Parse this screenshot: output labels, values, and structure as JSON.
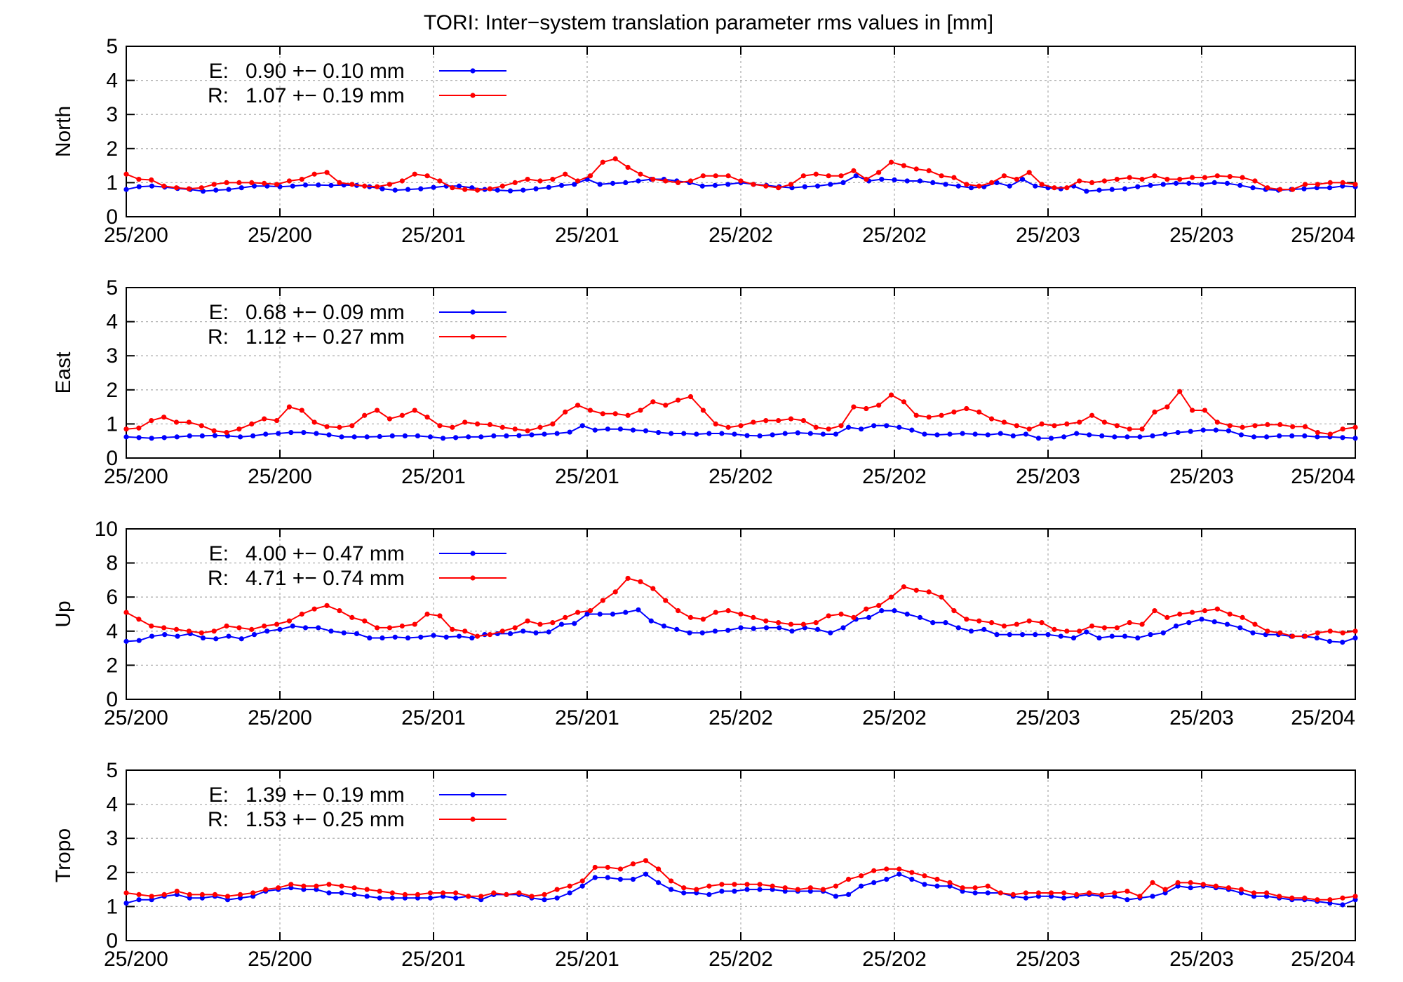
{
  "title": "TORI: Inter−system translation parameter rms values in [mm]",
  "colors": {
    "E": "#0000ff",
    "R": "#ff0000",
    "grid": "#b0b0b0"
  },
  "chart_data": [
    {
      "type": "line",
      "ylabel": "North",
      "ylim": [
        0,
        5
      ],
      "yticks": [
        0,
        1,
        2,
        3,
        4,
        5
      ],
      "xticks": [
        "25/200",
        "25/200",
        "25/201",
        "25/201",
        "25/202",
        "25/202",
        "25/203",
        "25/203",
        "25/204"
      ],
      "grid": true,
      "legend_position": "top-left",
      "series": [
        {
          "name": "E:",
          "stats": "0.90 +− 0.10 mm",
          "values": [
            0.8,
            0.88,
            0.9,
            0.87,
            0.83,
            0.8,
            0.75,
            0.78,
            0.8,
            0.85,
            0.9,
            0.9,
            0.88,
            0.9,
            0.93,
            0.93,
            0.92,
            0.93,
            0.92,
            0.88,
            0.82,
            0.78,
            0.8,
            0.82,
            0.86,
            0.9,
            0.9,
            0.85,
            0.8,
            0.78,
            0.76,
            0.78,
            0.82,
            0.86,
            0.92,
            0.95,
            1.1,
            0.95,
            0.98,
            1.0,
            1.05,
            1.1,
            1.1,
            1.05,
            1.0,
            0.9,
            0.92,
            0.95,
            1.0,
            0.95,
            0.92,
            0.88,
            0.85,
            0.88,
            0.9,
            0.95,
            1.0,
            1.2,
            1.05,
            1.1,
            1.08,
            1.05,
            1.05,
            1.0,
            0.95,
            0.9,
            0.85,
            0.88,
            1.0,
            0.9,
            1.1,
            0.9,
            0.85,
            0.82,
            0.9,
            0.75,
            0.78,
            0.8,
            0.82,
            0.88,
            0.92,
            0.95,
            0.98,
            0.98,
            0.95,
            1.0,
            0.98,
            0.92,
            0.85,
            0.8,
            0.78,
            0.8,
            0.82,
            0.85,
            0.85,
            0.9,
            0.88
          ]
        },
        {
          "name": "R:",
          "stats": "1.07 +− 0.19 mm",
          "values": [
            1.25,
            1.1,
            1.08,
            0.9,
            0.85,
            0.82,
            0.85,
            0.95,
            1.0,
            1.0,
            1.0,
            0.98,
            0.95,
            1.05,
            1.1,
            1.25,
            1.3,
            1.0,
            0.95,
            0.9,
            0.88,
            0.95,
            1.05,
            1.25,
            1.2,
            1.05,
            0.85,
            0.8,
            0.78,
            0.82,
            0.9,
            1.0,
            1.1,
            1.05,
            1.1,
            1.25,
            1.05,
            1.2,
            1.6,
            1.7,
            1.45,
            1.25,
            1.1,
            1.05,
            1.0,
            1.05,
            1.2,
            1.2,
            1.2,
            1.05,
            0.95,
            0.9,
            0.85,
            0.95,
            1.2,
            1.25,
            1.2,
            1.2,
            1.35,
            1.1,
            1.3,
            1.6,
            1.5,
            1.4,
            1.35,
            1.2,
            1.15,
            0.95,
            0.9,
            1.0,
            1.2,
            1.1,
            1.3,
            0.95,
            0.85,
            0.85,
            1.05,
            1.0,
            1.05,
            1.1,
            1.15,
            1.1,
            1.2,
            1.1,
            1.1,
            1.15,
            1.15,
            1.2,
            1.18,
            1.15,
            1.05,
            0.85,
            0.8,
            0.8,
            0.95,
            0.95,
            1.0,
            1.0,
            0.95
          ]
        }
      ]
    },
    {
      "type": "line",
      "ylabel": "East",
      "ylim": [
        0,
        5
      ],
      "yticks": [
        0,
        1,
        2,
        3,
        4,
        5
      ],
      "xticks": [
        "25/200",
        "25/200",
        "25/201",
        "25/201",
        "25/202",
        "25/202",
        "25/203",
        "25/203",
        "25/204"
      ],
      "grid": true,
      "legend_position": "top-left",
      "series": [
        {
          "name": "E:",
          "stats": "0.68 +− 0.09 mm",
          "values": [
            0.62,
            0.6,
            0.58,
            0.6,
            0.62,
            0.65,
            0.65,
            0.66,
            0.65,
            0.62,
            0.65,
            0.7,
            0.72,
            0.75,
            0.75,
            0.72,
            0.68,
            0.62,
            0.62,
            0.62,
            0.63,
            0.65,
            0.65,
            0.65,
            0.62,
            0.58,
            0.6,
            0.62,
            0.62,
            0.65,
            0.65,
            0.66,
            0.68,
            0.7,
            0.72,
            0.76,
            0.95,
            0.82,
            0.85,
            0.85,
            0.82,
            0.8,
            0.75,
            0.72,
            0.72,
            0.7,
            0.72,
            0.72,
            0.7,
            0.66,
            0.65,
            0.68,
            0.72,
            0.74,
            0.72,
            0.7,
            0.7,
            0.9,
            0.85,
            0.95,
            0.95,
            0.9,
            0.82,
            0.7,
            0.68,
            0.7,
            0.72,
            0.7,
            0.68,
            0.72,
            0.65,
            0.7,
            0.58,
            0.58,
            0.62,
            0.72,
            0.68,
            0.65,
            0.62,
            0.62,
            0.62,
            0.65,
            0.7,
            0.75,
            0.78,
            0.82,
            0.82,
            0.8,
            0.68,
            0.62,
            0.62,
            0.65,
            0.65,
            0.65,
            0.62,
            0.62,
            0.6,
            0.58
          ]
        },
        {
          "name": "R:",
          "stats": "1.12 +− 0.27 mm",
          "values": [
            0.85,
            0.88,
            1.1,
            1.2,
            1.05,
            1.05,
            0.95,
            0.8,
            0.75,
            0.85,
            1.0,
            1.15,
            1.1,
            1.5,
            1.4,
            1.05,
            0.92,
            0.9,
            0.95,
            1.25,
            1.4,
            1.15,
            1.25,
            1.4,
            1.2,
            0.95,
            0.9,
            1.05,
            1.0,
            0.98,
            0.9,
            0.85,
            0.8,
            0.9,
            1.0,
            1.35,
            1.55,
            1.4,
            1.3,
            1.3,
            1.25,
            1.4,
            1.65,
            1.55,
            1.7,
            1.8,
            1.4,
            1.0,
            0.9,
            0.95,
            1.05,
            1.1,
            1.1,
            1.15,
            1.1,
            0.9,
            0.85,
            0.95,
            1.5,
            1.45,
            1.55,
            1.85,
            1.65,
            1.25,
            1.2,
            1.25,
            1.35,
            1.45,
            1.35,
            1.15,
            1.05,
            0.95,
            0.85,
            1.0,
            0.95,
            1.0,
            1.05,
            1.25,
            1.05,
            0.95,
            0.85,
            0.85,
            1.35,
            1.5,
            1.95,
            1.4,
            1.4,
            1.05,
            0.95,
            0.9,
            0.95,
            0.98,
            0.98,
            0.92,
            0.92,
            0.75,
            0.7,
            0.85,
            0.9
          ]
        }
      ]
    },
    {
      "type": "line",
      "ylabel": "Up",
      "ylim": [
        0,
        10
      ],
      "yticks": [
        0,
        2,
        4,
        6,
        8,
        10
      ],
      "xticks": [
        "25/200",
        "25/200",
        "25/201",
        "25/201",
        "25/202",
        "25/202",
        "25/203",
        "25/203",
        "25/204"
      ],
      "grid": true,
      "legend_position": "top-left",
      "series": [
        {
          "name": "E:",
          "stats": "4.00 +− 0.47 mm",
          "values": [
            3.4,
            3.45,
            3.7,
            3.8,
            3.7,
            3.85,
            3.6,
            3.55,
            3.7,
            3.55,
            3.8,
            4.0,
            4.1,
            4.3,
            4.2,
            4.2,
            4.0,
            3.9,
            3.85,
            3.6,
            3.6,
            3.65,
            3.6,
            3.65,
            3.75,
            3.65,
            3.7,
            3.6,
            3.8,
            3.85,
            3.85,
            4.0,
            3.9,
            3.95,
            4.4,
            4.45,
            5.0,
            5.0,
            5.0,
            5.1,
            5.25,
            4.6,
            4.3,
            4.1,
            3.9,
            3.9,
            4.0,
            4.05,
            4.2,
            4.15,
            4.2,
            4.2,
            4.0,
            4.2,
            4.1,
            3.9,
            4.2,
            4.7,
            4.8,
            5.2,
            5.2,
            5.0,
            4.8,
            4.5,
            4.5,
            4.2,
            4.0,
            4.1,
            3.8,
            3.8,
            3.8,
            3.8,
            3.8,
            3.7,
            3.6,
            3.95,
            3.6,
            3.7,
            3.7,
            3.6,
            3.8,
            3.9,
            4.3,
            4.5,
            4.7,
            4.55,
            4.4,
            4.2,
            3.9,
            3.8,
            3.8,
            3.7,
            3.7,
            3.6,
            3.4,
            3.35,
            3.6
          ]
        },
        {
          "name": "R:",
          "stats": "4.71 +− 0.74 mm",
          "values": [
            5.1,
            4.7,
            4.3,
            4.2,
            4.1,
            4.0,
            3.9,
            4.0,
            4.3,
            4.2,
            4.1,
            4.3,
            4.4,
            4.6,
            5.0,
            5.3,
            5.5,
            5.2,
            4.8,
            4.6,
            4.2,
            4.2,
            4.3,
            4.4,
            5.0,
            4.9,
            4.1,
            4.0,
            3.7,
            3.8,
            4.0,
            4.2,
            4.6,
            4.4,
            4.5,
            4.8,
            5.1,
            5.2,
            5.8,
            6.3,
            7.1,
            6.9,
            6.5,
            5.8,
            5.2,
            4.8,
            4.7,
            5.1,
            5.2,
            5.0,
            4.8,
            4.6,
            4.5,
            4.4,
            4.4,
            4.5,
            4.9,
            5.0,
            4.8,
            5.3,
            5.5,
            6.0,
            6.6,
            6.4,
            6.3,
            6.0,
            5.2,
            4.7,
            4.6,
            4.5,
            4.3,
            4.4,
            4.6,
            4.5,
            4.1,
            4.0,
            4.0,
            4.3,
            4.2,
            4.2,
            4.5,
            4.4,
            5.2,
            4.8,
            5.0,
            5.1,
            5.2,
            5.3,
            5.0,
            4.8,
            4.4,
            4.0,
            3.9,
            3.7,
            3.7,
            3.9,
            4.0,
            3.9,
            4.0
          ]
        }
      ]
    },
    {
      "type": "line",
      "ylabel": "Tropo",
      "ylim": [
        0,
        5
      ],
      "yticks": [
        0,
        1,
        2,
        3,
        4,
        5
      ],
      "xticks": [
        "25/200",
        "25/200",
        "25/201",
        "25/201",
        "25/202",
        "25/202",
        "25/203",
        "25/203",
        "25/204"
      ],
      "grid": true,
      "legend_position": "top-left",
      "series": [
        {
          "name": "E:",
          "stats": "1.39 +− 0.19 mm",
          "values": [
            1.1,
            1.2,
            1.2,
            1.3,
            1.35,
            1.25,
            1.25,
            1.3,
            1.2,
            1.25,
            1.3,
            1.45,
            1.5,
            1.55,
            1.5,
            1.5,
            1.4,
            1.4,
            1.35,
            1.3,
            1.25,
            1.25,
            1.25,
            1.25,
            1.25,
            1.3,
            1.25,
            1.3,
            1.2,
            1.35,
            1.35,
            1.35,
            1.25,
            1.2,
            1.25,
            1.4,
            1.6,
            1.85,
            1.85,
            1.8,
            1.8,
            1.95,
            1.7,
            1.5,
            1.4,
            1.4,
            1.35,
            1.45,
            1.45,
            1.5,
            1.5,
            1.5,
            1.45,
            1.45,
            1.45,
            1.45,
            1.3,
            1.35,
            1.6,
            1.7,
            1.8,
            1.95,
            1.8,
            1.65,
            1.6,
            1.6,
            1.45,
            1.4,
            1.4,
            1.4,
            1.3,
            1.25,
            1.3,
            1.3,
            1.25,
            1.3,
            1.35,
            1.3,
            1.3,
            1.2,
            1.25,
            1.3,
            1.4,
            1.6,
            1.55,
            1.6,
            1.55,
            1.5,
            1.4,
            1.3,
            1.3,
            1.25,
            1.2,
            1.2,
            1.15,
            1.1,
            1.05,
            1.2
          ]
        },
        {
          "name": "R:",
          "stats": "1.53 +− 0.25 mm",
          "values": [
            1.4,
            1.35,
            1.3,
            1.35,
            1.45,
            1.35,
            1.35,
            1.35,
            1.3,
            1.35,
            1.4,
            1.5,
            1.55,
            1.65,
            1.6,
            1.6,
            1.65,
            1.6,
            1.55,
            1.5,
            1.45,
            1.4,
            1.35,
            1.35,
            1.4,
            1.4,
            1.4,
            1.3,
            1.3,
            1.4,
            1.35,
            1.4,
            1.3,
            1.35,
            1.5,
            1.6,
            1.75,
            2.15,
            2.15,
            2.1,
            2.25,
            2.35,
            2.1,
            1.75,
            1.55,
            1.5,
            1.6,
            1.65,
            1.65,
            1.65,
            1.65,
            1.6,
            1.55,
            1.5,
            1.55,
            1.5,
            1.6,
            1.8,
            1.9,
            2.05,
            2.1,
            2.1,
            2.0,
            1.9,
            1.8,
            1.7,
            1.55,
            1.55,
            1.6,
            1.4,
            1.35,
            1.4,
            1.4,
            1.4,
            1.4,
            1.35,
            1.4,
            1.35,
            1.4,
            1.45,
            1.3,
            1.7,
            1.5,
            1.7,
            1.7,
            1.65,
            1.6,
            1.55,
            1.5,
            1.4,
            1.4,
            1.3,
            1.25,
            1.25,
            1.2,
            1.2,
            1.25,
            1.3
          ]
        }
      ]
    }
  ]
}
